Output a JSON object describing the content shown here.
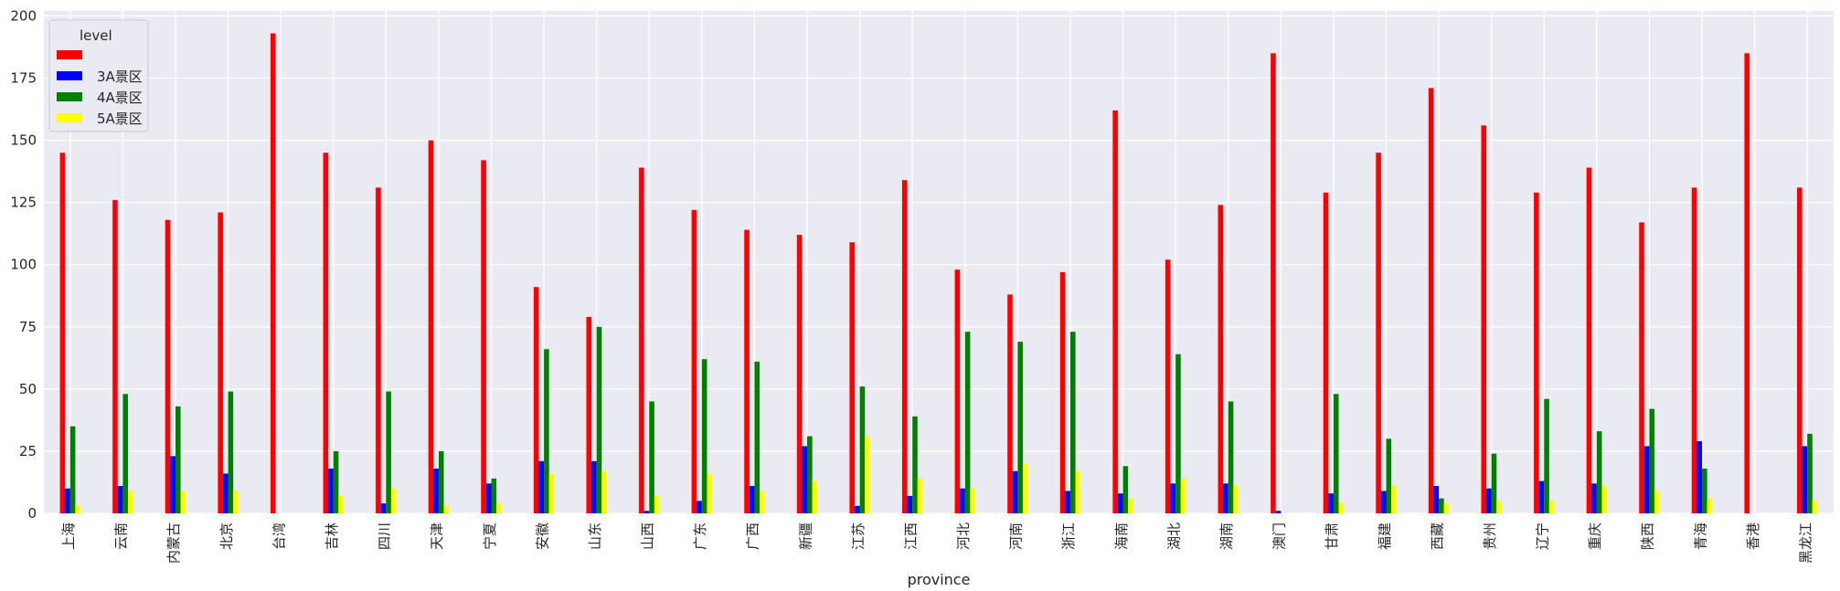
{
  "chart_data": {
    "type": "bar",
    "xlabel": "province",
    "ylabel": "",
    "ylim": [
      0,
      202
    ],
    "yticks": [
      0,
      25,
      50,
      75,
      100,
      125,
      150,
      175,
      200
    ],
    "grid": true,
    "legend": {
      "title": "level",
      "placement": "top-left"
    },
    "categories": [
      "上海",
      "云南",
      "内蒙古",
      "北京",
      "台湾",
      "吉林",
      "四川",
      "天津",
      "宁夏",
      "安徽",
      "山东",
      "山西",
      "广东",
      "广西",
      "新疆",
      "江苏",
      "江西",
      "河北",
      "河南",
      "浙江",
      "海南",
      "湖北",
      "湖南",
      "澳门",
      "甘肃",
      "福建",
      "西藏",
      "贵州",
      "辽宁",
      "重庆",
      "陕西",
      "青海",
      "香港",
      "黑龙江"
    ],
    "series": [
      {
        "name": "",
        "color": "#ff0000",
        "values": [
          145,
          126,
          118,
          121,
          193,
          145,
          131,
          150,
          142,
          91,
          79,
          139,
          122,
          114,
          112,
          109,
          134,
          98,
          88,
          97,
          162,
          102,
          124,
          185,
          129,
          145,
          171,
          156,
          129,
          139,
          117,
          131,
          185,
          131
        ]
      },
      {
        "name": "3A景区",
        "color": "#0000ff",
        "values": [
          10,
          11,
          23,
          16,
          0,
          18,
          4,
          18,
          12,
          21,
          21,
          1,
          5,
          11,
          27,
          3,
          7,
          10,
          17,
          9,
          8,
          12,
          12,
          1,
          8,
          9,
          11,
          10,
          13,
          12,
          27,
          29,
          0,
          27
        ]
      },
      {
        "name": "4A景区",
        "color": "#008000",
        "values": [
          35,
          48,
          43,
          49,
          0,
          25,
          49,
          25,
          14,
          66,
          75,
          45,
          62,
          61,
          31,
          51,
          39,
          73,
          69,
          73,
          19,
          64,
          45,
          0,
          48,
          30,
          6,
          24,
          46,
          33,
          42,
          18,
          0,
          32
        ]
      },
      {
        "name": "5A景区",
        "color": "#ffff00",
        "values": [
          3,
          9,
          9,
          9,
          0,
          7,
          10,
          3,
          4,
          16,
          17,
          7,
          16,
          9,
          13,
          31,
          14,
          10,
          20,
          17,
          6,
          14,
          11,
          0,
          4,
          11,
          4,
          5,
          5,
          11,
          9,
          6,
          0,
          5
        ]
      }
    ]
  }
}
